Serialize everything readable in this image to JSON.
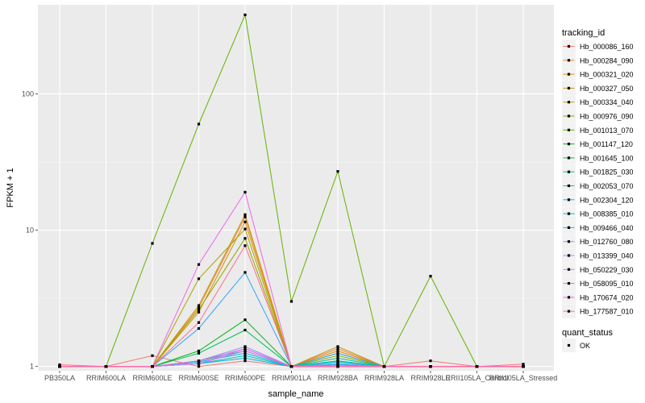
{
  "chart_data": {
    "type": "line",
    "title": "",
    "xlabel": "sample_name",
    "ylabel": "FPKM + 1",
    "y_scale": "log10",
    "ylim": [
      0.93,
      450
    ],
    "y_ticks": [
      1,
      10,
      100
    ],
    "y_tick_labels": [
      "1",
      "10",
      "100"
    ],
    "grid": true,
    "background": "#ebebeb",
    "legend_position": "right",
    "categories": [
      "PB350LA",
      "RRIM600LA",
      "RRIM600LE",
      "RRIM600SE",
      "RRIM600PE",
      "RRIM901LA",
      "RRIM928BA",
      "RRIM928LA",
      "RRIM928LE",
      "RRII105LA_Control",
      "RRII105LA_Stressed"
    ],
    "legend_title": "tracking_id",
    "series": [
      {
        "name": "Hb_000086_160",
        "color": "#F8766D",
        "values": [
          1.03,
          1.0,
          1.2,
          1.0,
          1.1,
          1.0,
          1.0,
          1.0,
          1.1,
          1.0,
          1.04
        ]
      },
      {
        "name": "Hb_000284_090",
        "color": "#EC8239",
        "values": [
          1.0,
          1.0,
          1.0,
          2.7,
          12.5,
          1.0,
          1.35,
          1.0,
          1.0,
          1.0,
          1.0
        ]
      },
      {
        "name": "Hb_000321_020",
        "color": "#DB8E00",
        "values": [
          1.0,
          1.0,
          1.0,
          2.5,
          11.5,
          1.0,
          1.3,
          1.0,
          1.0,
          1.0,
          1.0
        ]
      },
      {
        "name": "Hb_000327_050",
        "color": "#C79800",
        "values": [
          1.0,
          1.0,
          1.0,
          2.8,
          13.0,
          1.0,
          1.4,
          1.0,
          1.0,
          1.0,
          1.0
        ]
      },
      {
        "name": "Hb_000334_040",
        "color": "#AEA200",
        "values": [
          1.0,
          1.0,
          1.0,
          4.4,
          10.2,
          1.0,
          1.25,
          1.0,
          1.0,
          1.0,
          1.0
        ]
      },
      {
        "name": "Hb_000976_090",
        "color": "#8FAA00",
        "values": [
          1.0,
          1.0,
          1.0,
          2.6,
          8.7,
          1.0,
          1.2,
          1.0,
          1.0,
          1.0,
          1.0
        ]
      },
      {
        "name": "Hb_001013_070",
        "color": "#64B200",
        "values": [
          1.0,
          1.0,
          8.0,
          60.0,
          380.0,
          3.0,
          27.0,
          1.0,
          4.6,
          1.0,
          1.0
        ]
      },
      {
        "name": "Hb_001147_120",
        "color": "#00B81B",
        "values": [
          1.0,
          1.0,
          1.0,
          1.3,
          2.2,
          1.0,
          1.1,
          1.0,
          1.0,
          1.0,
          1.0
        ]
      },
      {
        "name": "Hb_001645_100",
        "color": "#00BD5C",
        "values": [
          1.0,
          1.0,
          1.0,
          1.25,
          1.85,
          1.0,
          1.05,
          1.0,
          1.0,
          1.0,
          1.0
        ]
      },
      {
        "name": "Hb_001825_030",
        "color": "#00C08E",
        "values": [
          1.0,
          1.0,
          1.0,
          1.1,
          1.3,
          1.0,
          1.15,
          1.0,
          1.0,
          1.0,
          1.0
        ]
      },
      {
        "name": "Hb_002053_070",
        "color": "#00C1B2",
        "values": [
          1.0,
          1.0,
          1.0,
          1.05,
          1.2,
          1.0,
          1.1,
          1.0,
          1.0,
          1.0,
          1.0
        ]
      },
      {
        "name": "Hb_002304_120",
        "color": "#00BCD1",
        "values": [
          1.0,
          1.0,
          1.0,
          1.08,
          1.25,
          1.0,
          1.08,
          1.0,
          1.0,
          1.0,
          1.0
        ]
      },
      {
        "name": "Hb_008385_010",
        "color": "#00B3E9",
        "values": [
          1.0,
          1.0,
          1.0,
          1.05,
          1.15,
          1.0,
          1.03,
          1.0,
          1.0,
          1.0,
          1.0
        ]
      },
      {
        "name": "Hb_009466_040",
        "color": "#35A2FF",
        "values": [
          1.0,
          1.0,
          1.0,
          1.9,
          4.9,
          1.0,
          1.25,
          1.0,
          1.0,
          1.0,
          1.0
        ]
      },
      {
        "name": "Hb_012760_080",
        "color": "#7F96FF",
        "values": [
          1.0,
          1.0,
          1.0,
          1.1,
          1.4,
          1.0,
          1.05,
          1.0,
          1.0,
          1.0,
          1.0
        ]
      },
      {
        "name": "Hb_013399_040",
        "color": "#A58AFF",
        "values": [
          1.0,
          1.0,
          1.0,
          1.05,
          1.35,
          1.0,
          1.02,
          1.0,
          1.0,
          1.0,
          1.0
        ]
      },
      {
        "name": "Hb_050229_030",
        "color": "#D177FF",
        "values": [
          1.0,
          1.0,
          1.0,
          1.05,
          1.3,
          1.0,
          1.0,
          1.0,
          1.0,
          1.0,
          1.0
        ]
      },
      {
        "name": "Hb_058095_010",
        "color": "#F066EA",
        "values": [
          1.0,
          1.0,
          1.0,
          5.6,
          19.0,
          1.0,
          1.0,
          1.0,
          1.0,
          1.0,
          1.0
        ]
      },
      {
        "name": "Hb_170674_020",
        "color": "#FD61D1",
        "values": [
          1.0,
          1.0,
          1.0,
          1.1,
          1.35,
          1.0,
          1.0,
          1.0,
          1.0,
          1.0,
          1.0
        ]
      },
      {
        "name": "Hb_177587_010",
        "color": "#FF6C91",
        "values": [
          1.0,
          1.0,
          1.0,
          2.1,
          7.7,
          1.0,
          1.0,
          1.0,
          1.0,
          1.0,
          1.0
        ]
      }
    ],
    "shape_legend_title": "quant_status",
    "shape_legend_entries": [
      "OK"
    ]
  }
}
